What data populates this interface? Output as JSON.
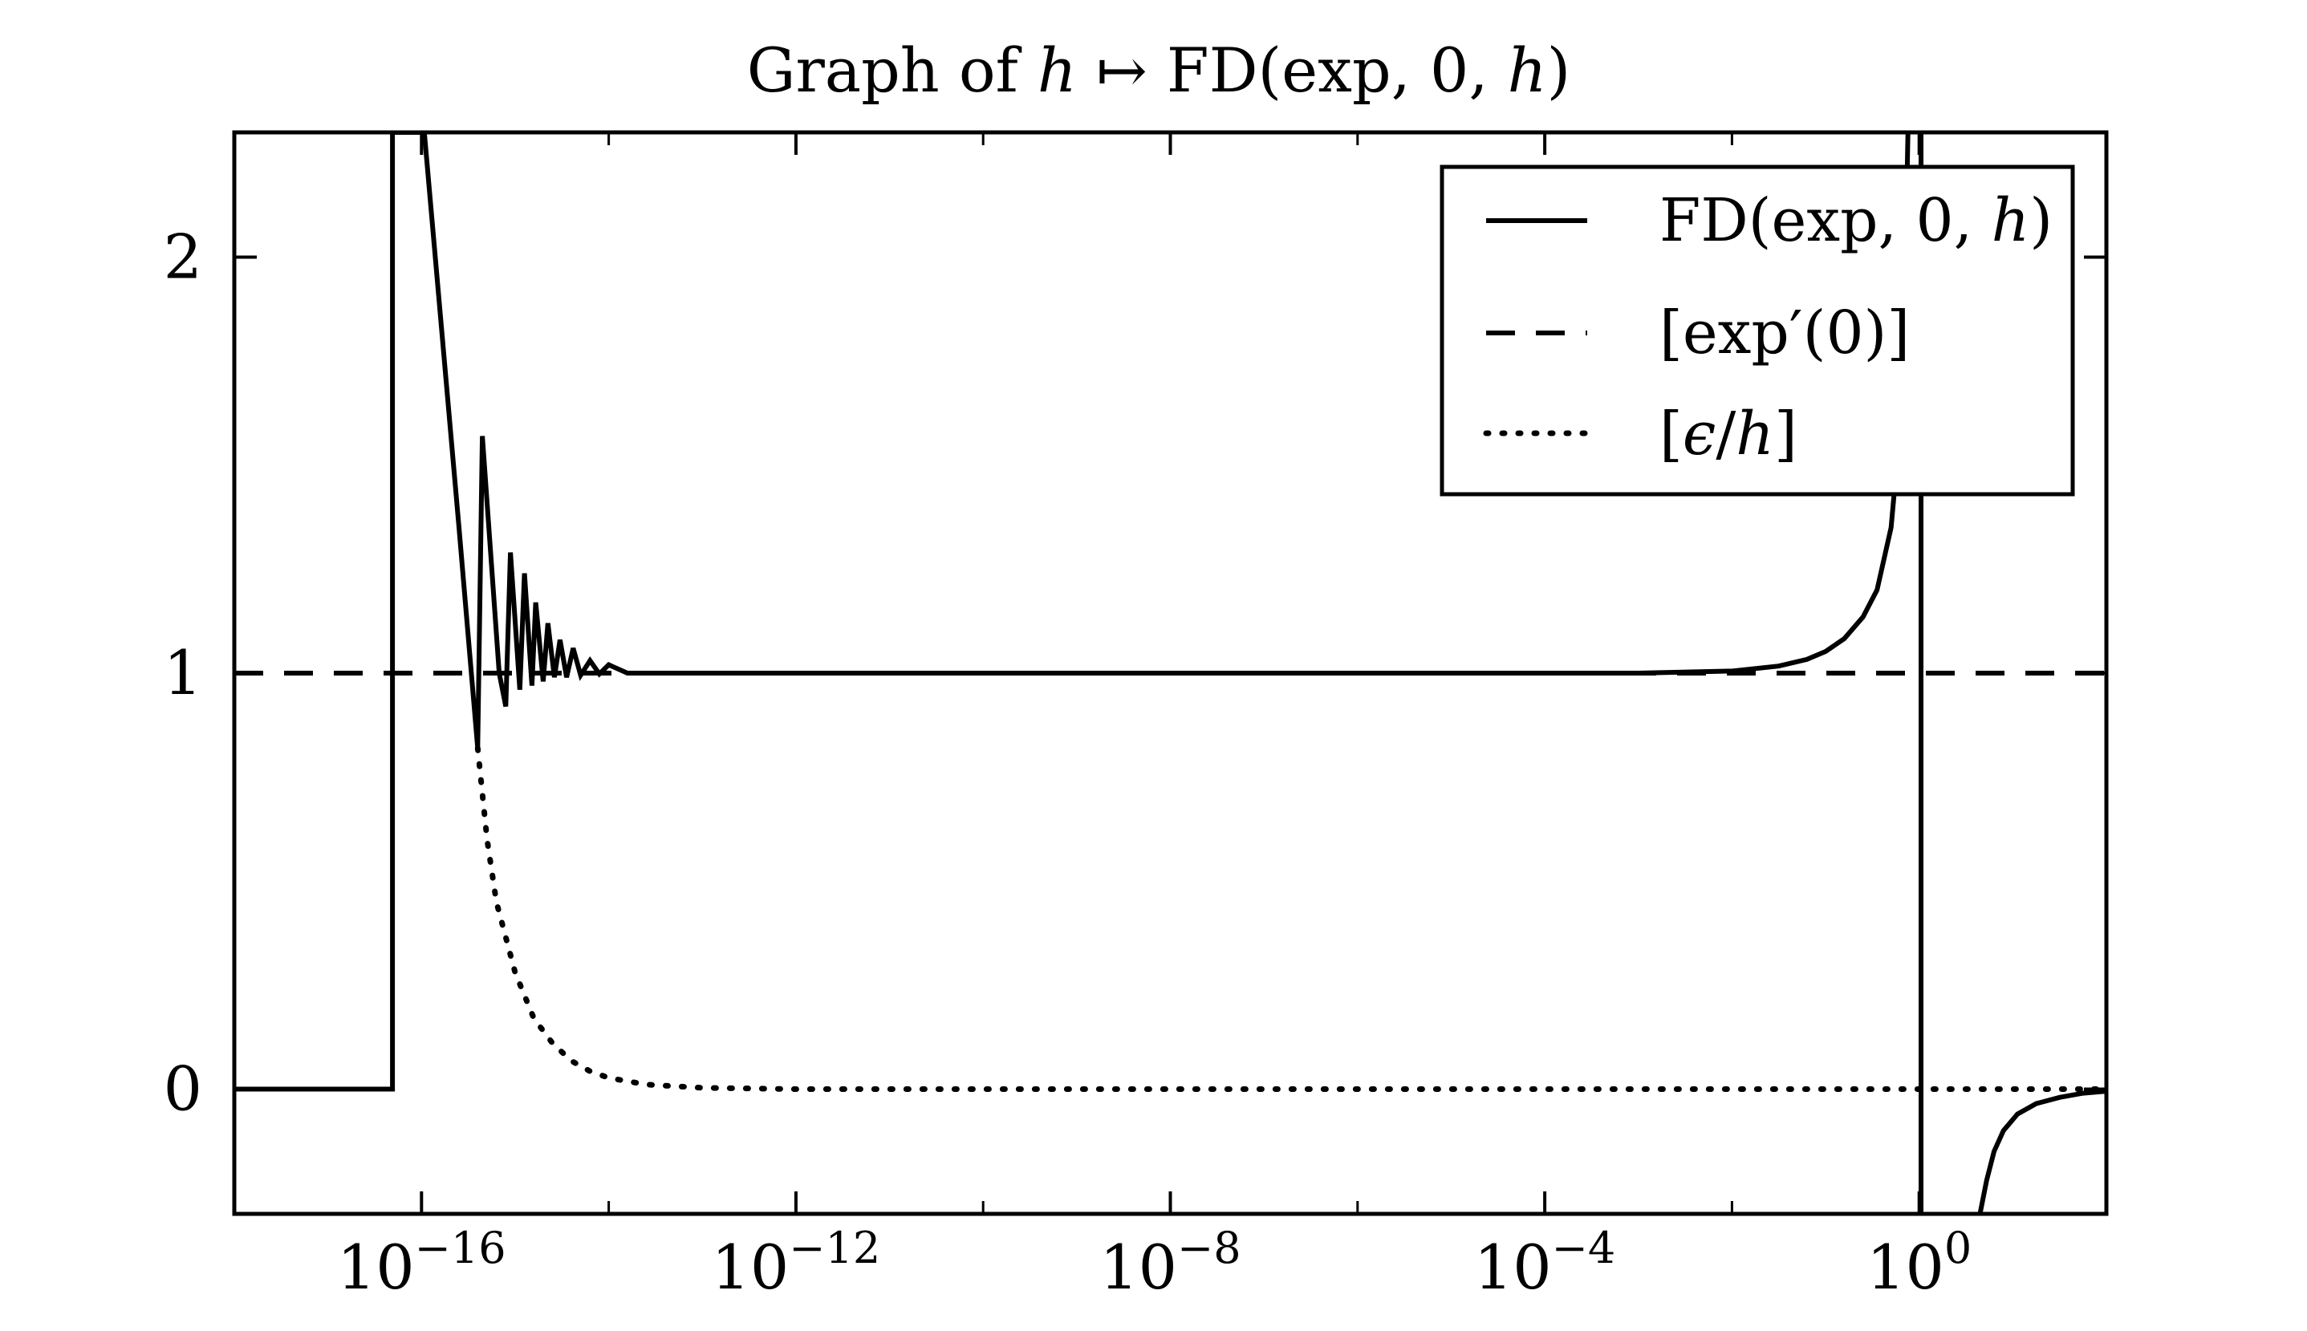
{
  "chart_data": {
    "type": "line",
    "title": {
      "prefix": "Graph of ",
      "var": "h",
      "arrow": " ↦ ",
      "func": "FD(exp, 0, ",
      "var2": "h",
      "close": ")"
    },
    "xlabel": "",
    "ylabel": "",
    "xscale": "log",
    "xlim_log10": [
      -18,
      2
    ],
    "ylim": [
      -0.3,
      2.3
    ],
    "grid": false,
    "legend_position": "top-right",
    "x_ticks": [
      {
        "exp": -16,
        "base": "10",
        "sup": "−16"
      },
      {
        "exp": -12,
        "base": "10",
        "sup": "−12"
      },
      {
        "exp": -8,
        "base": "10",
        "sup": "−8"
      },
      {
        "exp": -4,
        "base": "10",
        "sup": "−4"
      },
      {
        "exp": 0,
        "base": "10",
        "sup": "0"
      }
    ],
    "x_minor_ticks_log10": [
      -14,
      -10,
      -6,
      -2
    ],
    "y_ticks": [
      {
        "value": 0,
        "label": "0"
      },
      {
        "value": 1,
        "label": "1"
      },
      {
        "value": 2,
        "label": "2"
      }
    ],
    "series": [
      {
        "name": "FD(exp, 0, h)",
        "legend_parts": [
          "FD(exp, 0, ",
          "h",
          ")"
        ],
        "style": "solid",
        "description_points_log10x_y": [
          [
            -18,
            0
          ],
          [
            -16.31,
            0
          ],
          [
            -16.31,
            2.3
          ],
          [
            -15.97,
            2.3
          ],
          [
            -15.6,
            1.35
          ],
          [
            -15.4,
            0.82
          ],
          [
            -15.35,
            1.57
          ],
          [
            -15.17,
            1.0
          ],
          [
            -15.1,
            0.92
          ],
          [
            -15.05,
            1.29
          ],
          [
            -14.95,
            0.96
          ],
          [
            -14.9,
            1.24
          ],
          [
            -14.82,
            0.97
          ],
          [
            -14.78,
            1.17
          ],
          [
            -14.7,
            0.98
          ],
          [
            -14.65,
            1.12
          ],
          [
            -14.58,
            0.99
          ],
          [
            -14.52,
            1.08
          ],
          [
            -14.45,
            0.99
          ],
          [
            -14.38,
            1.06
          ],
          [
            -14.3,
            0.995
          ],
          [
            -14.2,
            1.03
          ],
          [
            -14.1,
            0.998
          ],
          [
            -14.0,
            1.02
          ],
          [
            -13.8,
            1.0
          ],
          [
            -13.0,
            1.0
          ],
          [
            -6.0,
            1.0
          ],
          [
            -3.0,
            1.0
          ],
          [
            -2.0,
            1.005
          ],
          [
            -1.5,
            1.017
          ],
          [
            -1.2,
            1.033
          ],
          [
            -1.0,
            1.052
          ],
          [
            -0.8,
            1.083
          ],
          [
            -0.6,
            1.135
          ],
          [
            -0.45,
            1.2
          ],
          [
            -0.3,
            1.35
          ],
          [
            -0.2,
            1.6
          ],
          [
            -0.15,
            1.95
          ],
          [
            -0.12,
            2.3
          ]
        ],
        "segments_log10x_y": [
          [
            [
              0.02,
              2.3
            ],
            [
              0.02,
              -0.3
            ]
          ],
          [
            [
              0.65,
              -0.3
            ],
            [
              0.72,
              -0.22
            ],
            [
              0.8,
              -0.15
            ],
            [
              0.9,
              -0.1
            ],
            [
              1.05,
              -0.06
            ],
            [
              1.25,
              -0.035
            ],
            [
              1.5,
              -0.02
            ],
            [
              1.75,
              -0.01
            ],
            [
              2.0,
              -0.005
            ]
          ]
        ]
      },
      {
        "name": "[exp′(0)]",
        "style": "dashed",
        "constant_y": 1
      },
      {
        "name": "[ϵ/h]",
        "legend_parts": [
          "[",
          "ϵ",
          "/",
          "h",
          "]"
        ],
        "style": "dotted",
        "description_points_log10x_y": [
          [
            -15.4,
            0.82
          ],
          [
            -15.3,
            0.6
          ],
          [
            -15.2,
            0.45
          ],
          [
            -15.0,
            0.28
          ],
          [
            -14.8,
            0.17
          ],
          [
            -14.6,
            0.11
          ],
          [
            -14.4,
            0.068
          ],
          [
            -14.2,
            0.043
          ],
          [
            -14.0,
            0.027
          ],
          [
            -13.6,
            0.011
          ],
          [
            -13.0,
            0.003
          ],
          [
            -12.0,
            0.0
          ],
          [
            2.0,
            0.0
          ]
        ]
      }
    ]
  }
}
